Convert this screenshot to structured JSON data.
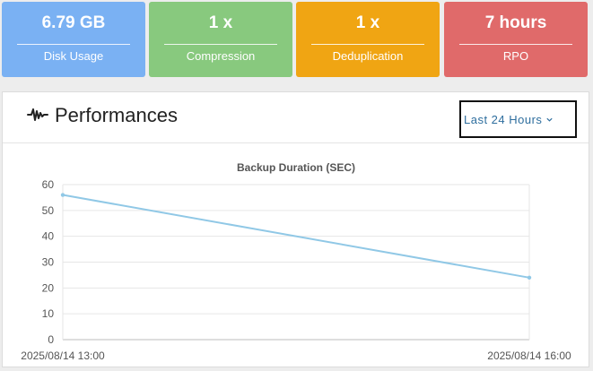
{
  "stats": [
    {
      "value": "6.79 GB",
      "label": "Disk Usage",
      "color": "#7ab1f3"
    },
    {
      "value": "1 x",
      "label": "Compression",
      "color": "#88c97e"
    },
    {
      "value": "1 x",
      "label": "Deduplication",
      "color": "#f0a513"
    },
    {
      "value": "7 hours",
      "label": "RPO",
      "color": "#e06a6a"
    }
  ],
  "performance": {
    "title": "Performances",
    "icon": "pulse-icon",
    "range_label": "Last 24 Hours"
  },
  "chart_data": {
    "type": "line",
    "title": "Backup Duration (SEC)",
    "x": [
      "2025/08/14 13:00",
      "2025/08/14 16:00"
    ],
    "series": [
      {
        "name": "Backup Duration",
        "values": [
          56,
          24
        ],
        "color": "#90c8e6"
      }
    ],
    "ylim": [
      0,
      60
    ],
    "yticks": [
      0,
      10,
      20,
      30,
      40,
      50,
      60
    ],
    "grid": true,
    "legend": "bottom"
  }
}
